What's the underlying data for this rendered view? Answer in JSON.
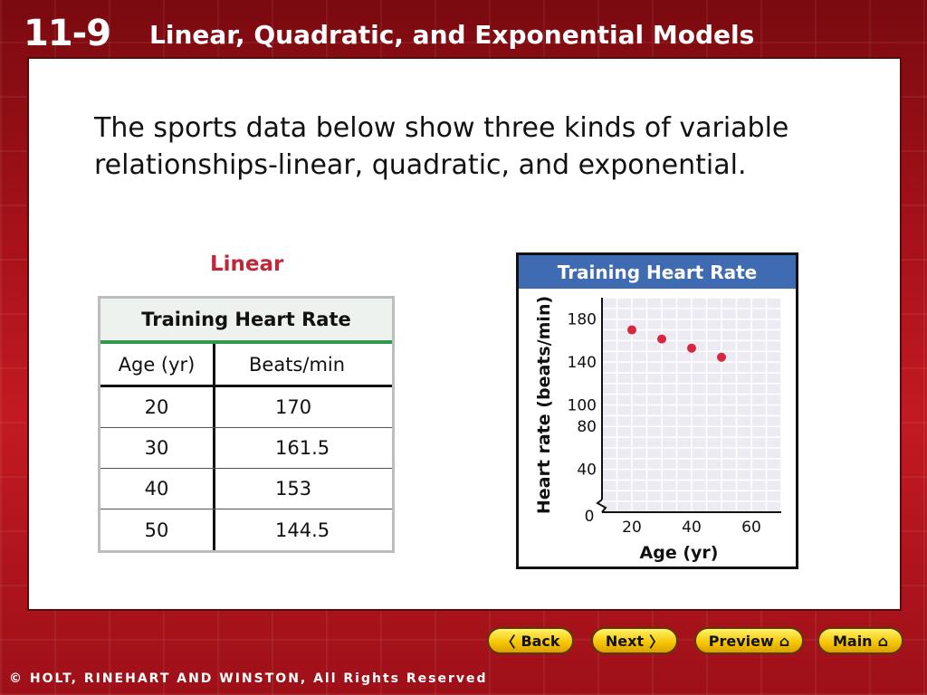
{
  "header": {
    "lesson_number": "11-9",
    "lesson_title": "Linear, Quadratic, and Exponential Models"
  },
  "intro_text": "The sports data below show three kinds of variable relationships-linear, quadratic, and exponential.",
  "section_label": "Linear",
  "table": {
    "title": "Training Heart Rate",
    "columns": [
      "Age (yr)",
      "Beats/min"
    ],
    "rows": [
      [
        "20",
        "170"
      ],
      [
        "30",
        "161.5"
      ],
      [
        "40",
        "153"
      ],
      [
        "50",
        "144.5"
      ]
    ]
  },
  "chart_data": {
    "type": "scatter",
    "title": "Training Heart Rate",
    "xlabel": "Age (yr)",
    "ylabel": "Heart rate (beats/min)",
    "x": [
      20,
      30,
      40,
      50
    ],
    "y": [
      170,
      161.5,
      153,
      144.5
    ],
    "xlim": [
      10,
      70
    ],
    "ylim": [
      0,
      200
    ],
    "x_ticks": [
      "20",
      "40",
      "60"
    ],
    "y_ticks": [
      "40",
      "80",
      "100",
      "140",
      "180"
    ],
    "origin_label": "0",
    "grid": true,
    "point_color": "#d7263d"
  },
  "nav": {
    "back": "Back",
    "next": "Next",
    "preview": "Preview",
    "main": "Main"
  },
  "footer": "© HOLT, RINEHART AND WINSTON, All Rights Reserved"
}
